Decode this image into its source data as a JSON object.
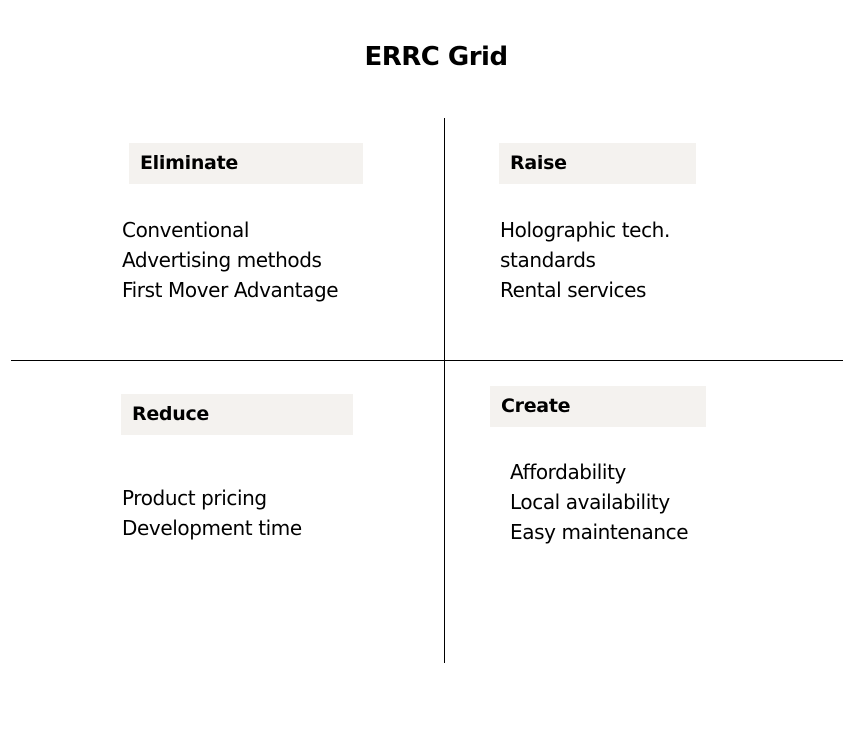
{
  "title": "ERRC Grid",
  "quadrants": {
    "eliminate": {
      "label": "Eliminate",
      "items": [
        "Conventional",
        "Advertising methods",
        "First Mover Advantage"
      ]
    },
    "raise": {
      "label": "Raise",
      "items": [
        "Holographic tech.",
        "standards",
        "Rental services"
      ]
    },
    "reduce": {
      "label": "Reduce",
      "items": [
        "Product pricing",
        "Development time"
      ]
    },
    "create": {
      "label": "Create",
      "items": [
        "Affordability",
        "Local availability",
        "Easy maintenance"
      ]
    }
  },
  "colors": {
    "header_bg": "#f4f2ef",
    "line": "#000000",
    "text": "#000000"
  }
}
